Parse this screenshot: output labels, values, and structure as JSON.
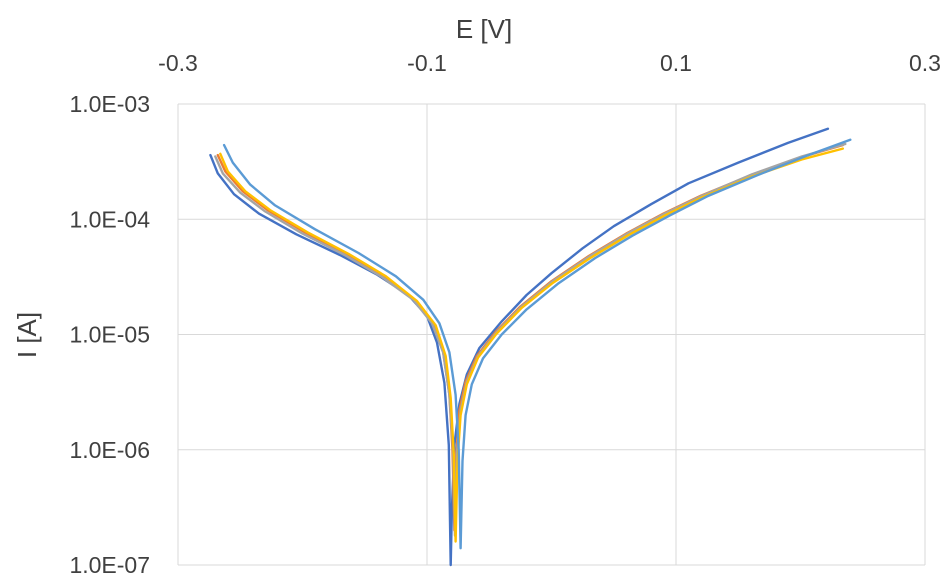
{
  "chart_data": {
    "type": "line",
    "title": "",
    "xlabel": "E [V]",
    "ylabel": "I [A]",
    "x_axis_position": "top",
    "xlim": [
      -0.3,
      0.3
    ],
    "ylim": [
      1e-07,
      0.001
    ],
    "yscale": "log",
    "x_ticks": [
      "-0.3",
      "-0.1",
      "0.1",
      "0.3"
    ],
    "x_tick_values": [
      -0.3,
      -0.1,
      0.1,
      0.3
    ],
    "y_ticks": [
      "1.0E-03",
      "1.0E-04",
      "1.0E-05",
      "1.0E-06",
      "1.0E-07"
    ],
    "y_tick_values": [
      0.001,
      0.0001,
      1e-05,
      1e-06,
      1e-07
    ],
    "grid": true,
    "legend": "none",
    "series": [
      {
        "color": "#4472c4",
        "points": [
          [
            -0.274,
            0.00036
          ],
          [
            -0.268,
            0.00025
          ],
          [
            -0.255,
            0.000165
          ],
          [
            -0.235,
            0.000112
          ],
          [
            -0.205,
            7.4e-05
          ],
          [
            -0.17,
            4.9e-05
          ],
          [
            -0.14,
            3.3e-05
          ],
          [
            -0.115,
            2.2e-05
          ],
          [
            -0.1,
            1.45e-05
          ],
          [
            -0.092,
            8.5e-06
          ],
          [
            -0.086,
            3.8e-06
          ],
          [
            -0.0825,
            1.1e-06
          ],
          [
            -0.0815,
            2.4e-07
          ],
          [
            -0.081,
            1e-07
          ],
          [
            -0.08,
            3e-07
          ],
          [
            -0.078,
            1.1e-06
          ],
          [
            -0.074,
            2.5e-06
          ],
          [
            -0.068,
            4.5e-06
          ],
          [
            -0.058,
            7.6e-06
          ],
          [
            -0.04,
            1.3e-05
          ],
          [
            -0.02,
            2.2e-05
          ],
          [
            0.0,
            3.4e-05
          ],
          [
            0.025,
            5.6e-05
          ],
          [
            0.05,
            8.7e-05
          ],
          [
            0.08,
            0.000135
          ],
          [
            0.11,
            0.000205
          ],
          [
            0.15,
            0.00031
          ],
          [
            0.19,
            0.00046
          ],
          [
            0.222,
            0.00061
          ]
        ]
      },
      {
        "color": "#ed7d31",
        "points": [
          [
            -0.268,
            0.00036
          ],
          [
            -0.262,
            0.00026
          ],
          [
            -0.248,
            0.000175
          ],
          [
            -0.228,
            0.00012
          ],
          [
            -0.198,
            7.7e-05
          ],
          [
            -0.165,
            5e-05
          ],
          [
            -0.135,
            3.2e-05
          ],
          [
            -0.11,
            2e-05
          ],
          [
            -0.095,
            1.25e-05
          ],
          [
            -0.087,
            7e-06
          ],
          [
            -0.082,
            3e-06
          ],
          [
            -0.0795,
            1e-06
          ],
          [
            -0.078,
            2e-07
          ],
          [
            -0.0765,
            9e-07
          ],
          [
            -0.074,
            2.2e-06
          ],
          [
            -0.069,
            3.9e-06
          ],
          [
            -0.06,
            6.5e-06
          ],
          [
            -0.045,
            1.05e-05
          ],
          [
            -0.025,
            1.75e-05
          ],
          [
            0.0,
            2.9e-05
          ],
          [
            0.03,
            4.8e-05
          ],
          [
            0.06,
            7.5e-05
          ],
          [
            0.09,
            0.000112
          ],
          [
            0.12,
            0.00016
          ],
          [
            0.16,
            0.00024
          ],
          [
            0.2,
            0.000345
          ],
          [
            0.234,
            0.00044
          ]
        ]
      },
      {
        "color": "#a5a5a5",
        "points": [
          [
            -0.27,
            0.00035
          ],
          [
            -0.264,
            0.00025
          ],
          [
            -0.25,
            0.00017
          ],
          [
            -0.23,
            0.000117
          ],
          [
            -0.2,
            7.5e-05
          ],
          [
            -0.166,
            4.9e-05
          ],
          [
            -0.136,
            3.15e-05
          ],
          [
            -0.111,
            2e-05
          ],
          [
            -0.096,
            1.25e-05
          ],
          [
            -0.087,
            7e-06
          ],
          [
            -0.082,
            3e-06
          ],
          [
            -0.079,
            1e-06
          ],
          [
            -0.0775,
            1.8e-07
          ],
          [
            -0.076,
            9e-07
          ],
          [
            -0.073,
            2.2e-06
          ],
          [
            -0.068,
            3.9e-06
          ],
          [
            -0.059,
            6.5e-06
          ],
          [
            -0.044,
            1.05e-05
          ],
          [
            -0.024,
            1.75e-05
          ],
          [
            0.001,
            2.9e-05
          ],
          [
            0.031,
            4.8e-05
          ],
          [
            0.061,
            7.5e-05
          ],
          [
            0.091,
            0.000112
          ],
          [
            0.121,
            0.00016
          ],
          [
            0.161,
            0.000245
          ],
          [
            0.201,
            0.00035
          ],
          [
            0.236,
            0.00045
          ]
        ]
      },
      {
        "color": "#ffc000",
        "points": [
          [
            -0.266,
            0.00037
          ],
          [
            -0.26,
            0.00026
          ],
          [
            -0.246,
            0.000175
          ],
          [
            -0.226,
            0.00012
          ],
          [
            -0.196,
            7.7e-05
          ],
          [
            -0.163,
            5e-05
          ],
          [
            -0.133,
            3.2e-05
          ],
          [
            -0.108,
            1.95e-05
          ],
          [
            -0.093,
            1.2e-05
          ],
          [
            -0.085,
            6.5e-06
          ],
          [
            -0.081,
            2.8e-06
          ],
          [
            -0.0785,
            9e-07
          ],
          [
            -0.077,
            1.6e-07
          ],
          [
            -0.0755,
            8e-07
          ],
          [
            -0.073,
            2e-06
          ],
          [
            -0.068,
            3.7e-06
          ],
          [
            -0.059,
            6.3e-06
          ],
          [
            -0.044,
            1.02e-05
          ],
          [
            -0.024,
            1.7e-05
          ],
          [
            0.001,
            2.8e-05
          ],
          [
            0.031,
            4.6e-05
          ],
          [
            0.061,
            7.2e-05
          ],
          [
            0.091,
            0.000108
          ],
          [
            0.121,
            0.000155
          ],
          [
            0.161,
            0.000235
          ],
          [
            0.201,
            0.00033
          ],
          [
            0.234,
            0.00041
          ]
        ]
      },
      {
        "color": "#5b9bd5",
        "points": [
          [
            -0.263,
            0.00044
          ],
          [
            -0.256,
            0.00031
          ],
          [
            -0.242,
            0.0002
          ],
          [
            -0.222,
            0.000132
          ],
          [
            -0.19,
            8.2e-05
          ],
          [
            -0.155,
            5.1e-05
          ],
          [
            -0.125,
            3.2e-05
          ],
          [
            -0.103,
            2e-05
          ],
          [
            -0.09,
            1.25e-05
          ],
          [
            -0.082,
            7e-06
          ],
          [
            -0.077,
            3e-06
          ],
          [
            -0.0745,
            1e-06
          ],
          [
            -0.073,
            1.4e-07
          ],
          [
            -0.0715,
            8e-07
          ],
          [
            -0.069,
            2e-06
          ],
          [
            -0.064,
            3.7e-06
          ],
          [
            -0.055,
            6.2e-06
          ],
          [
            -0.04,
            1e-05
          ],
          [
            -0.02,
            1.65e-05
          ],
          [
            0.005,
            2.75e-05
          ],
          [
            0.035,
            4.6e-05
          ],
          [
            0.065,
            7.2e-05
          ],
          [
            0.095,
            0.000108
          ],
          [
            0.125,
            0.000158
          ],
          [
            0.165,
            0.00024
          ],
          [
            0.205,
            0.000355
          ],
          [
            0.24,
            0.00049
          ]
        ]
      }
    ]
  }
}
